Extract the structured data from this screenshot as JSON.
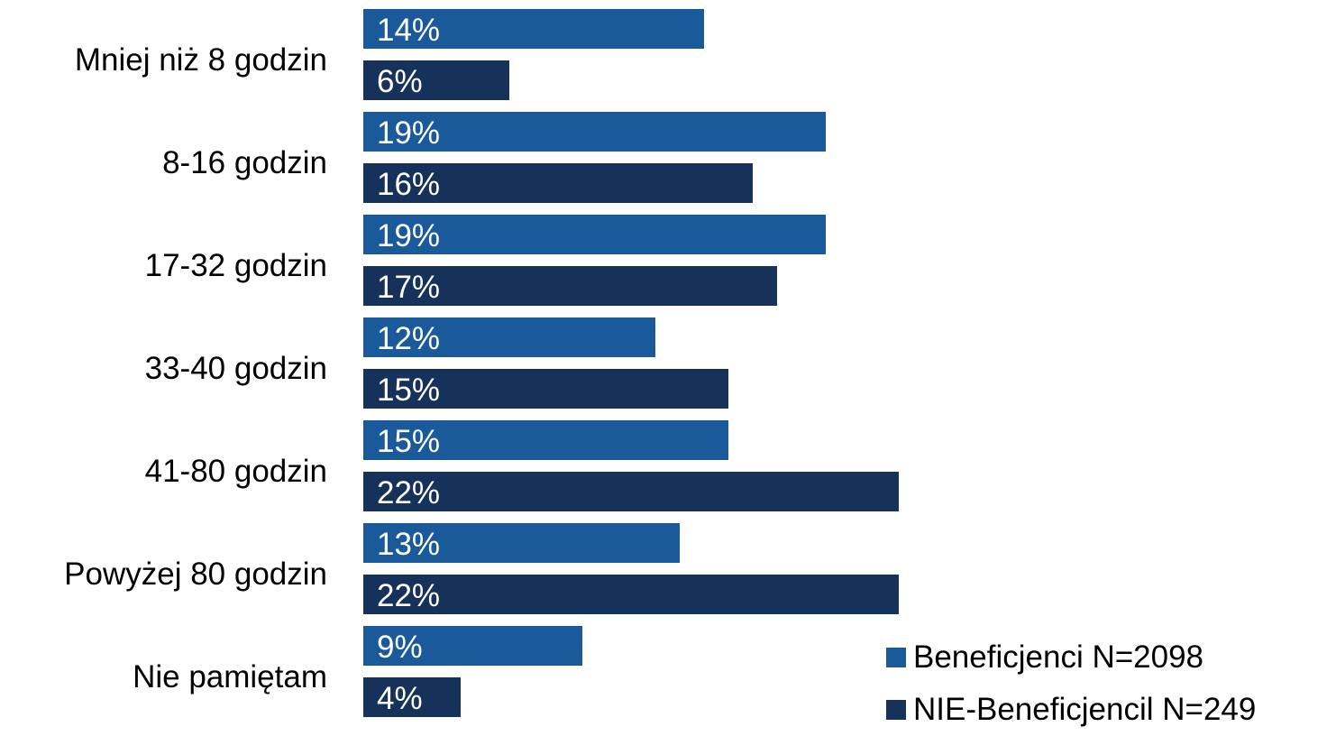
{
  "chart_data": {
    "type": "bar",
    "orientation": "horizontal",
    "categories": [
      "Mniej niż 8 godzin",
      "8-16 godzin",
      "17-32 godzin",
      "33-40 godzin",
      "41-80 godzin",
      "Powyżej 80 godzin",
      "Nie pamiętam"
    ],
    "series": [
      {
        "name": "Beneficjenci  N=2098",
        "values": [
          14,
          19,
          19,
          12,
          15,
          13,
          9
        ],
        "labels": [
          "14%",
          "19%",
          "19%",
          "12%",
          "15%",
          "13%",
          "9%"
        ],
        "color": "#1a5a9a"
      },
      {
        "name": "NIE-Beneficjencil N=249",
        "values": [
          6,
          16,
          17,
          15,
          22,
          22,
          4
        ],
        "labels": [
          "6%",
          "16%",
          "17%",
          "15%",
          "22%",
          "22%",
          "4%"
        ],
        "color": "#17325a"
      }
    ],
    "xlim": [
      0,
      24
    ],
    "grid": false,
    "legend_position": "bottom-right"
  }
}
